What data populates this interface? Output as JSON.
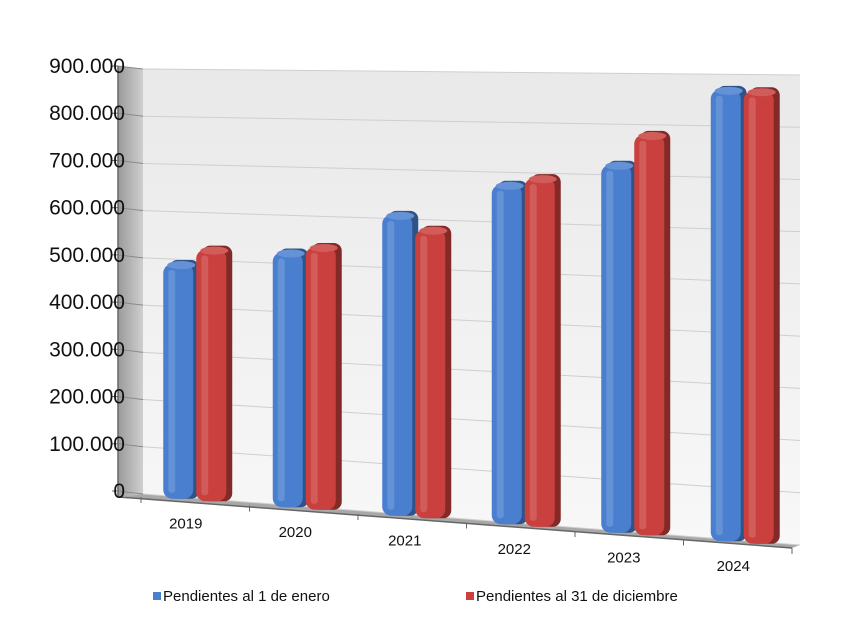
{
  "chart_data": {
    "type": "bar",
    "three_d": true,
    "title": "",
    "xlabel": "",
    "ylabel": "",
    "categories": [
      "2019",
      "2020",
      "2021",
      "2022",
      "2023",
      "2024"
    ],
    "series": [
      {
        "name": "Pendientes al 1 de enero",
        "color": "#4a7fd0",
        "values": [
          490000,
          523000,
          608000,
          675000,
          720000,
          870000
        ]
      },
      {
        "name": "Pendientes al 31 de diciembre",
        "color": "#c9403e",
        "values": [
          523000,
          537000,
          580000,
          690000,
          780000,
          868000
        ]
      }
    ],
    "ylim": [
      0,
      900000
    ],
    "yticks": [
      "0",
      "100.000",
      "200.000",
      "300.000",
      "400.000",
      "500.000",
      "600.000",
      "700.000",
      "800.000",
      "900.000"
    ],
    "grid": true,
    "legend_position": "bottom"
  },
  "colors": {
    "wall_top": "#e9e9e9",
    "wall_bottom": "#f8f8f8",
    "gridline": "#cfcfcf",
    "axis": "#666666"
  }
}
